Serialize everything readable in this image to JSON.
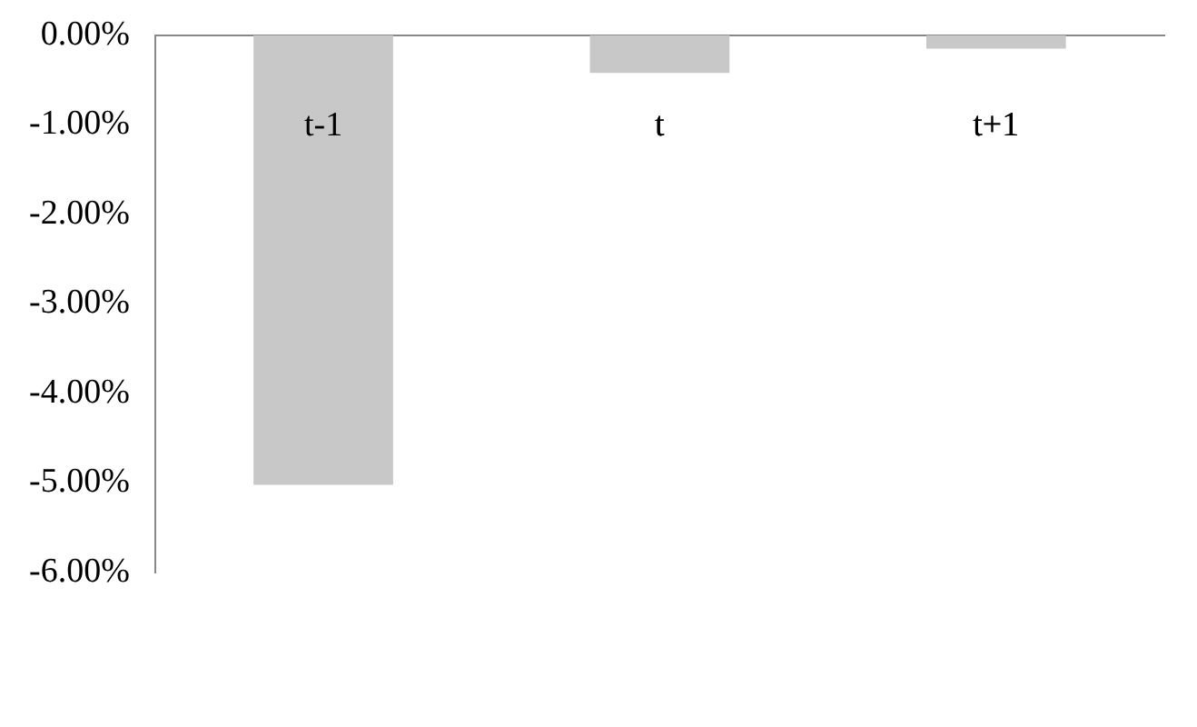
{
  "chart_data": {
    "type": "bar",
    "categories": [
      "t-1",
      "t",
      "t+1"
    ],
    "series": [
      {
        "color": "#c8c8c8",
        "values": [
          -5.02,
          -0.42,
          -0.15
        ]
      }
    ],
    "ylim": [
      -6,
      0
    ],
    "yticks": [
      {
        "value": 0,
        "label": "0.00%"
      },
      {
        "value": -1,
        "label": "-1.00%"
      },
      {
        "value": -2,
        "label": "-2.00%"
      },
      {
        "value": -3,
        "label": "-3.00%"
      },
      {
        "value": -4,
        "label": "-4.00%"
      },
      {
        "value": -5,
        "label": "-5.00%"
      },
      {
        "value": -6,
        "label": "-6.00%"
      }
    ],
    "grid": false,
    "legend": false
  }
}
